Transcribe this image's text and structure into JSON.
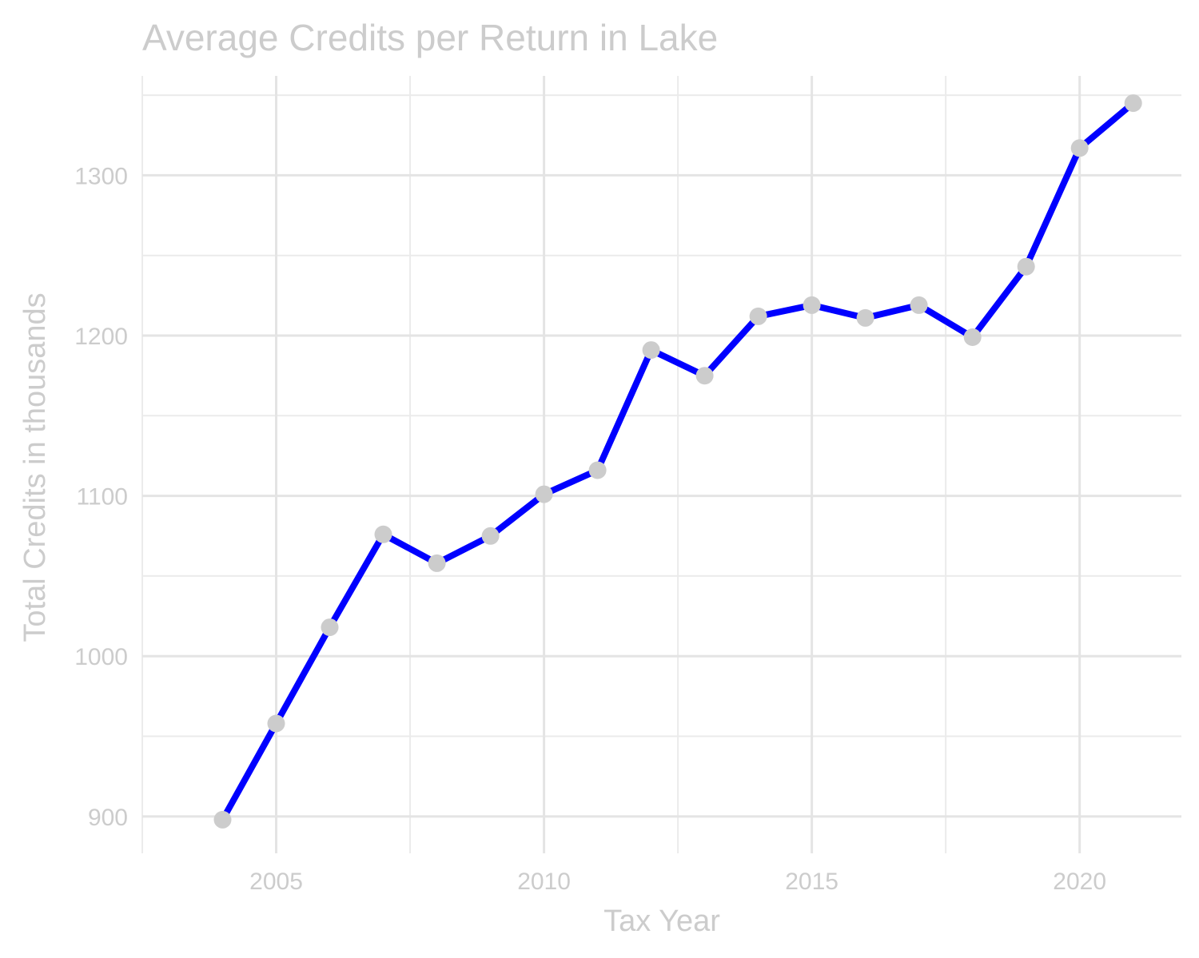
{
  "chart_data": {
    "type": "line",
    "title": "Average Credits per Return in Lake",
    "xlabel": "Tax Year",
    "ylabel": "Total Credits in thousands",
    "x": [
      2004,
      2005,
      2006,
      2007,
      2008,
      2009,
      2010,
      2011,
      2012,
      2013,
      2014,
      2015,
      2016,
      2017,
      2018,
      2019,
      2020,
      2021
    ],
    "series": [
      {
        "values": [
          898,
          958,
          1018,
          1076,
          1058,
          1075,
          1101,
          1116,
          1191,
          1175,
          1212,
          1219,
          1211,
          1219,
          1199,
          1243,
          1317,
          1345
        ]
      }
    ],
    "xlim": [
      2002.5,
      2021.9
    ],
    "ylim": [
      877,
      1362
    ],
    "x_ticks": [
      2005,
      2010,
      2015,
      2020
    ],
    "x_tick_labels": [
      "2005",
      "2010",
      "2015",
      "2020"
    ],
    "y_ticks": [
      900,
      1000,
      1100,
      1200,
      1300
    ],
    "y_tick_labels": [
      "900",
      "1000",
      "1100",
      "1200",
      "1300"
    ],
    "grid": true,
    "line_color": "#0000ff",
    "point_color": "#cccccc",
    "text_color": "#cccccc",
    "grid_color": "#e4e4e4"
  }
}
